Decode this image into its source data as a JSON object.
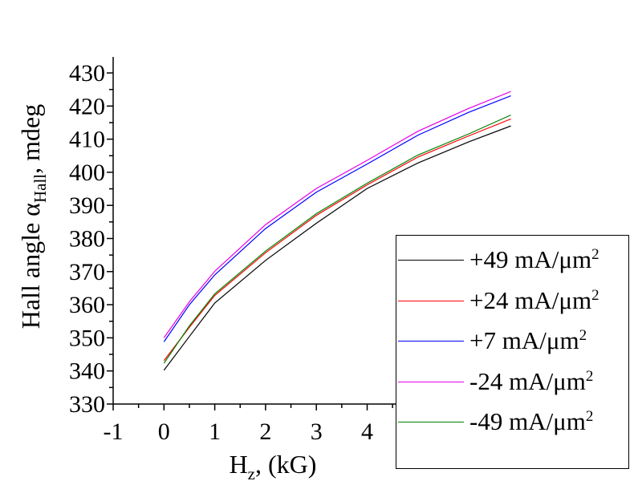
{
  "chart_data": {
    "type": "line",
    "title": "",
    "xlabel": {
      "main": "H",
      "sub": "z",
      "rest": ", (kG)"
    },
    "ylabel": {
      "main": "Hall angle α",
      "sub": "Hall",
      "rest": ", mdeg"
    },
    "xlim": [
      -1,
      7
    ],
    "ylim": [
      330,
      430
    ],
    "x_ticks": [
      -1,
      0,
      1,
      2,
      3,
      4
    ],
    "y_ticks": [
      330,
      340,
      350,
      360,
      370,
      380,
      390,
      400,
      410,
      420,
      430
    ],
    "grid": false,
    "legend_position": "bottom-right",
    "x": [
      0,
      0.5,
      1,
      2,
      3,
      4,
      5,
      6,
      6.83
    ],
    "series": [
      {
        "name": "+49 mA/μm",
        "sup": "2",
        "color": "#000000",
        "values": [
          340.2,
          350.4,
          360.5,
          373.4,
          384.6,
          395.1,
          402.8,
          409.2,
          414.0
        ]
      },
      {
        "name": "+24 mA/μm",
        "sup": "2",
        "color": "#ff0000",
        "values": [
          343.1,
          353.2,
          362.8,
          375.7,
          387.0,
          396.2,
          404.6,
          411.0,
          416.1
        ]
      },
      {
        "name": "+7 mA/μm",
        "sup": "2",
        "color": "#0000ff",
        "values": [
          348.8,
          360.0,
          369.0,
          383.0,
          394.0,
          402.5,
          411.2,
          418.1,
          423.1
        ]
      },
      {
        "name": "-24 mA/μm",
        "sup": "2",
        "color": "#e600e6",
        "values": [
          350.0,
          360.9,
          370.1,
          384.2,
          395.1,
          403.6,
          412.4,
          419.3,
          424.4
        ]
      },
      {
        "name": "-49 mA/μm",
        "sup": "2",
        "color": "#008000",
        "values": [
          342.3,
          353.6,
          363.3,
          376.2,
          387.5,
          396.7,
          405.2,
          411.6,
          417.3
        ]
      }
    ]
  }
}
